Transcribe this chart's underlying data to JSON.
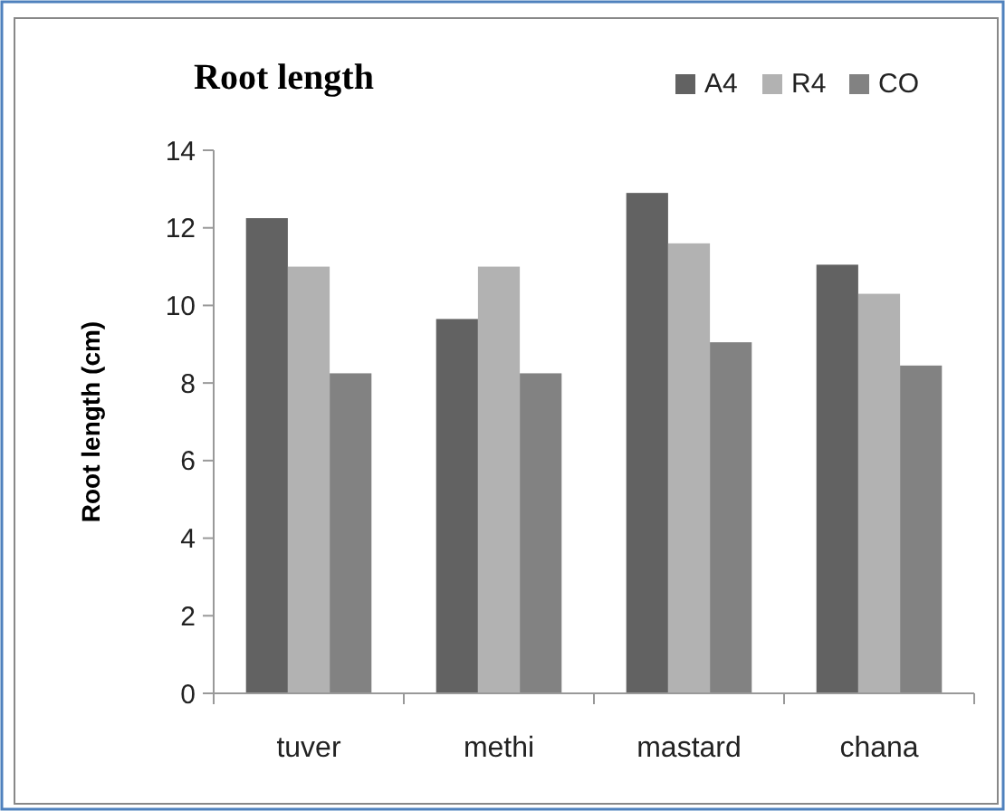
{
  "chart_data": {
    "type": "bar",
    "title": "Root length",
    "ylabel": "Root length (cm)",
    "categories": [
      "tuver",
      "methi",
      "mastard",
      "chana"
    ],
    "series": [
      {
        "name": "A4",
        "color": "#626262",
        "values": [
          12.25,
          9.65,
          12.9,
          11.05
        ]
      },
      {
        "name": "R4",
        "color": "#b2b2b2",
        "values": [
          11.0,
          11.0,
          11.6,
          10.3
        ]
      },
      {
        "name": "CO",
        "color": "#828282",
        "values": [
          8.25,
          8.25,
          9.05,
          8.45
        ]
      }
    ],
    "ylim": [
      0,
      14
    ],
    "yticks": [
      0,
      2,
      4,
      6,
      8,
      10,
      12,
      14
    ],
    "grid": false,
    "legend": "top right"
  }
}
